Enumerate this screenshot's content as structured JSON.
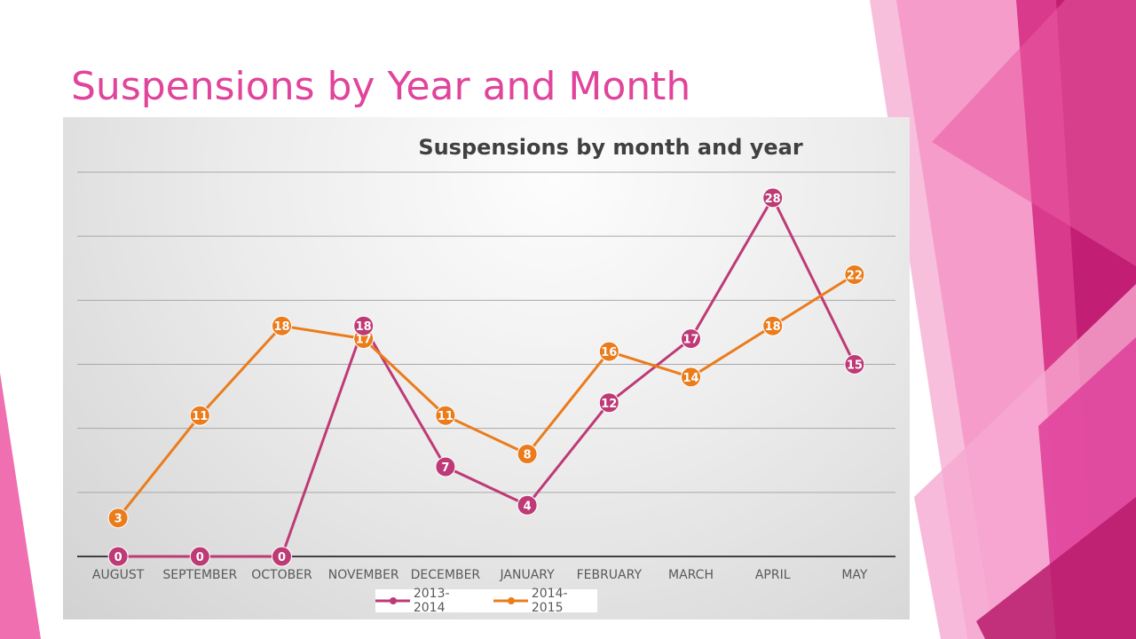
{
  "slide": {
    "title": "Suspensions by Year and Month"
  },
  "colors": {
    "title": "#e0449b",
    "series_2013": "#be3a76",
    "series_2014": "#ea7c1c",
    "deco_pink": "#f06fb0",
    "deco_magenta": "#c21f74"
  },
  "chart_data": {
    "type": "line",
    "title": "Suspensions by month and year",
    "categories": [
      "AUGUST",
      "SEPTEMBER",
      "OCTOBER",
      "NOVEMBER",
      "DECEMBER",
      "JANUARY",
      "FEBRUARY",
      "MARCH",
      "APRIL",
      "MAY"
    ],
    "series": [
      {
        "name": "2013-2014",
        "color": "#be3a76",
        "values": [
          0,
          0,
          0,
          18,
          7,
          4,
          12,
          17,
          28,
          15
        ]
      },
      {
        "name": "2014-2015",
        "color": "#ea7c1c",
        "values": [
          3,
          11,
          18,
          17,
          11,
          8,
          16,
          14,
          18,
          22
        ]
      }
    ],
    "ylim": [
      0,
      30
    ],
    "gridlines": [
      5,
      10,
      15,
      20,
      25,
      30
    ],
    "data_labels": true,
    "legend_position": "bottom",
    "grid": true
  }
}
